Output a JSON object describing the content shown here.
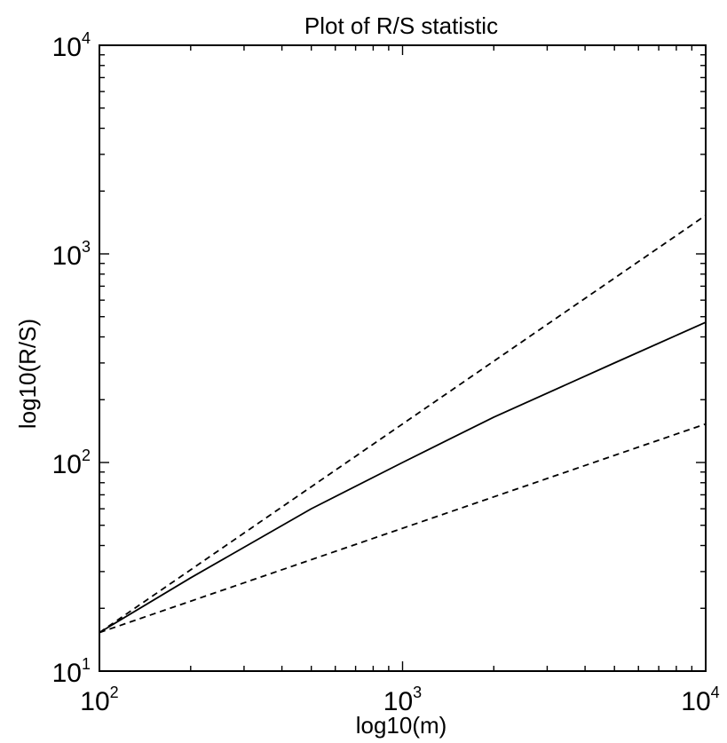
{
  "chart_data": {
    "type": "line",
    "title": "Plot of R/S statistic",
    "xlabel": "log10(m)",
    "ylabel": "log10(R/S)",
    "xscale": "log",
    "yscale": "log",
    "xlim": [
      100,
      10000
    ],
    "ylim": [
      10,
      10000
    ],
    "grid": false,
    "legend": "none",
    "x_ticks": [
      {
        "base": "10",
        "exp": "2",
        "value": 100
      },
      {
        "base": "10",
        "exp": "3",
        "value": 1000
      },
      {
        "base": "10",
        "exp": "4",
        "value": 10000
      }
    ],
    "y_ticks": [
      {
        "base": "10",
        "exp": "1",
        "value": 10
      },
      {
        "base": "10",
        "exp": "2",
        "value": 100
      },
      {
        "base": "10",
        "exp": "3",
        "value": 1000
      },
      {
        "base": "10",
        "exp": "4",
        "value": 10000
      }
    ],
    "series": [
      {
        "style": "solid",
        "color": "#000000",
        "points": [
          [
            100,
            15.3
          ],
          [
            200,
            28
          ],
          [
            500,
            60
          ],
          [
            1000,
            100
          ],
          [
            2000,
            165
          ],
          [
            5000,
            300
          ],
          [
            10000,
            470
          ]
        ]
      },
      {
        "style": "dashed",
        "color": "#000000",
        "points": [
          [
            100,
            15.3
          ],
          [
            10000,
            1530
          ]
        ]
      },
      {
        "style": "dashed",
        "color": "#000000",
        "points": [
          [
            100,
            15.3
          ],
          [
            10000,
            153
          ]
        ]
      }
    ]
  }
}
